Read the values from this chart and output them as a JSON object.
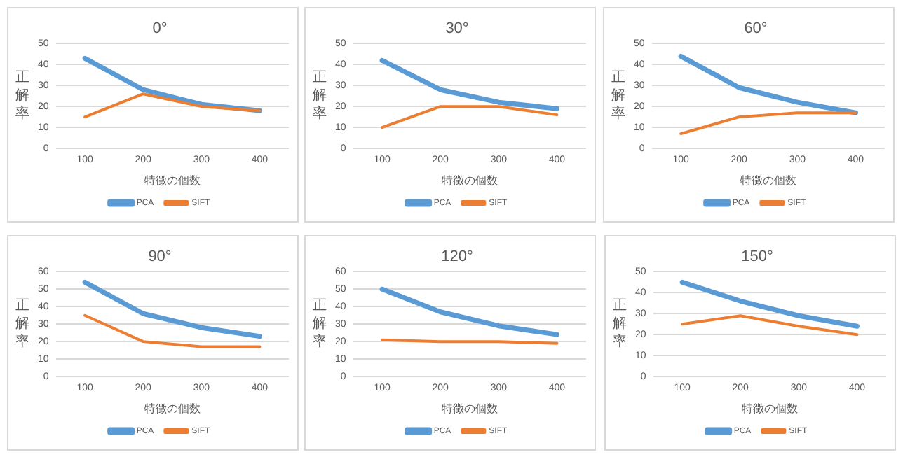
{
  "chart_data": [
    {
      "type": "line",
      "title": "0°",
      "xlabel": "特徴の個数",
      "ylabel": "正解率",
      "categories": [
        "100",
        "200",
        "300",
        "400"
      ],
      "ylim": [
        0,
        50
      ],
      "yticks": [
        0,
        10,
        20,
        30,
        40,
        50
      ],
      "grid": "y",
      "legend": "bottom",
      "series": [
        {
          "name": "PCA",
          "color": "#5b9bd5",
          "values": [
            43,
            28,
            21,
            18
          ]
        },
        {
          "name": "SIFT",
          "color": "#ed7d31",
          "values": [
            15,
            26,
            20,
            18
          ]
        }
      ]
    },
    {
      "type": "line",
      "title": "30°",
      "xlabel": "特徴の個数",
      "ylabel": "正解率",
      "categories": [
        "100",
        "200",
        "300",
        "400"
      ],
      "ylim": [
        0,
        50
      ],
      "yticks": [
        0,
        10,
        20,
        30,
        40,
        50
      ],
      "grid": "y",
      "legend": "bottom",
      "series": [
        {
          "name": "PCA",
          "color": "#5b9bd5",
          "values": [
            42,
            28,
            22,
            19
          ]
        },
        {
          "name": "SIFT",
          "color": "#ed7d31",
          "values": [
            10,
            20,
            20,
            16
          ]
        }
      ]
    },
    {
      "type": "line",
      "title": "60°",
      "xlabel": "特徴の個数",
      "ylabel": "正解率",
      "categories": [
        "100",
        "200",
        "300",
        "400"
      ],
      "ylim": [
        0,
        50
      ],
      "yticks": [
        0,
        10,
        20,
        30,
        40,
        50
      ],
      "grid": "y",
      "legend": "bottom",
      "series": [
        {
          "name": "PCA",
          "color": "#5b9bd5",
          "values": [
            44,
            29,
            22,
            17
          ]
        },
        {
          "name": "SIFT",
          "color": "#ed7d31",
          "values": [
            7,
            15,
            17,
            17
          ]
        }
      ]
    },
    {
      "type": "line",
      "title": "90°",
      "xlabel": "特徴の個数",
      "ylabel": "正解率",
      "categories": [
        "100",
        "200",
        "300",
        "400"
      ],
      "ylim": [
        0,
        60
      ],
      "yticks": [
        0,
        10,
        20,
        30,
        40,
        50,
        60
      ],
      "grid": "y",
      "legend": "bottom",
      "series": [
        {
          "name": "PCA",
          "color": "#5b9bd5",
          "values": [
            54,
            36,
            28,
            23
          ]
        },
        {
          "name": "SIFT",
          "color": "#ed7d31",
          "values": [
            35,
            20,
            17,
            17
          ]
        }
      ]
    },
    {
      "type": "line",
      "title": "120°",
      "xlabel": "特徴の個数",
      "ylabel": "正解率",
      "categories": [
        "100",
        "200",
        "300",
        "400"
      ],
      "ylim": [
        0,
        60
      ],
      "yticks": [
        0,
        10,
        20,
        30,
        40,
        50,
        60
      ],
      "grid": "y",
      "legend": "bottom",
      "series": [
        {
          "name": "PCA",
          "color": "#5b9bd5",
          "values": [
            50,
            37,
            29,
            24
          ]
        },
        {
          "name": "SIFT",
          "color": "#ed7d31",
          "values": [
            21,
            20,
            20,
            19
          ]
        }
      ]
    },
    {
      "type": "line",
      "title": "150°",
      "xlabel": "特徴の個数",
      "ylabel": "正解率",
      "categories": [
        "100",
        "200",
        "300",
        "400"
      ],
      "ylim": [
        0,
        50
      ],
      "yticks": [
        0,
        10,
        20,
        30,
        40,
        50
      ],
      "grid": "y",
      "legend": "bottom",
      "series": [
        {
          "name": "PCA",
          "color": "#5b9bd5",
          "values": [
            45,
            36,
            29,
            24
          ]
        },
        {
          "name": "SIFT",
          "color": "#ed7d31",
          "values": [
            25,
            29,
            24,
            20
          ]
        }
      ]
    }
  ]
}
